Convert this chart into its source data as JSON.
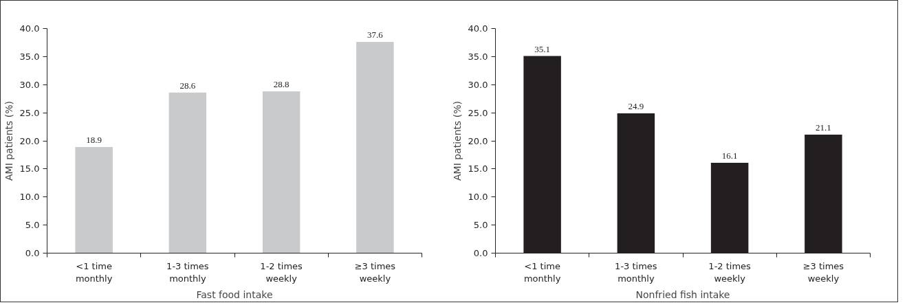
{
  "chart_data": [
    {
      "type": "bar",
      "xlabel": "Fast food intake",
      "ylabel": "AMI patients (%)",
      "categories": [
        "<1 time monthly",
        "1-3 times monthly",
        "1-2 times weekly",
        "≥3 times weekly"
      ],
      "values": [
        18.9,
        28.6,
        28.8,
        37.6
      ],
      "color": "#c9cacc",
      "ylim": [
        0,
        40
      ],
      "yticks": [
        {
          "value": 0,
          "label": "0.0"
        },
        {
          "value": 5,
          "label": "5.0"
        },
        {
          "value": 10,
          "label": "10.0"
        },
        {
          "value": 15,
          "label": "15.0"
        },
        {
          "value": 20,
          "label": "20.0"
        },
        {
          "value": 25,
          "label": "25.0"
        },
        {
          "value": 30,
          "label": "30.0"
        },
        {
          "value": 35,
          "label": "35.0"
        },
        {
          "value": 40,
          "label": "40.0"
        }
      ],
      "data_labels": true,
      "grid": false
    },
    {
      "type": "bar",
      "xlabel": "Nonfried fish intake",
      "ylabel": "AMI patients (%)",
      "categories": [
        "<1 time monthly",
        "1-3 times monthly",
        "1-2 times weekly",
        "≥3 times weekly"
      ],
      "values": [
        35.1,
        24.9,
        16.1,
        21.1
      ],
      "color": "#231f20",
      "ylim": [
        0,
        40
      ],
      "yticks": [
        {
          "value": 0,
          "label": "0.0"
        },
        {
          "value": 5,
          "label": "5.0"
        },
        {
          "value": 10,
          "label": "10.0"
        },
        {
          "value": 15,
          "label": "15.0"
        },
        {
          "value": 20,
          "label": "20.0"
        },
        {
          "value": 25,
          "label": "25.0"
        },
        {
          "value": 30,
          "label": "30.0"
        },
        {
          "value": 35,
          "label": "35.0"
        },
        {
          "value": 40,
          "label": "40.0"
        }
      ],
      "data_labels": true,
      "grid": false
    }
  ]
}
